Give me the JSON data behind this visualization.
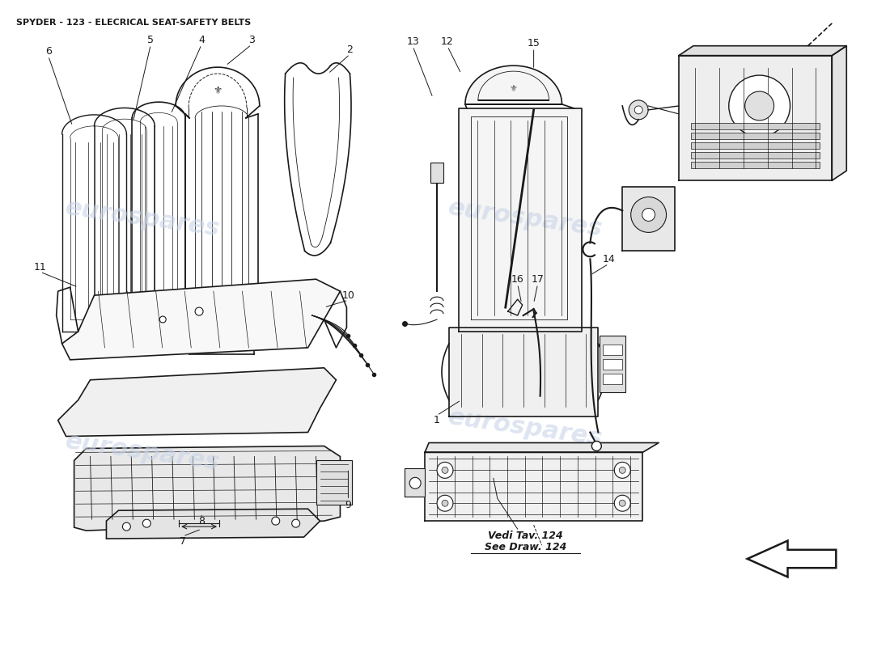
{
  "title": "SPYDER - 123 - ELECRICAL SEAT-SAFETY BELTS",
  "title_fontsize": 8,
  "background_color": "#ffffff",
  "watermark_text": "eurospares",
  "watermark_color": "#c8d4e8",
  "watermark_fontsize": 22,
  "line_color": "#1a1a1a",
  "label_fontsize": 9,
  "vedi_text_line1": "Vedi Tav. 124",
  "vedi_text_line2": "See Draw. 124"
}
